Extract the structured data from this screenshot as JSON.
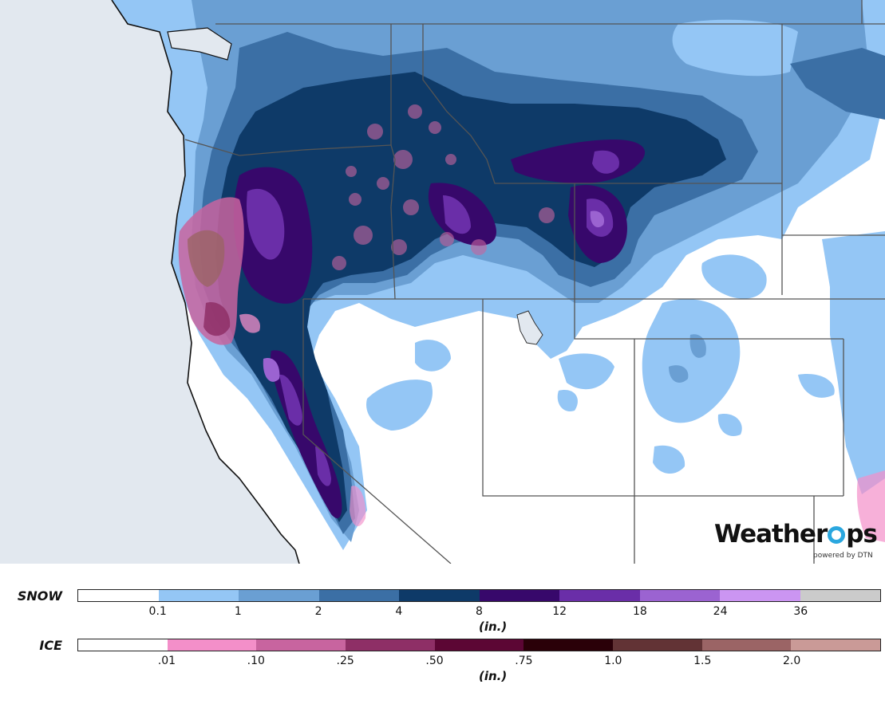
{
  "logo": {
    "brand_prefix": "Weather",
    "brand_suffix": "ps",
    "powered_by": "powered by DTN"
  },
  "colors": {
    "ocean": "#e2e8ef",
    "land": "#ffffff",
    "border": "#555555",
    "coast": "#111111"
  },
  "legend": {
    "snow": {
      "label": "SNOW",
      "unit": "(in.)",
      "colors": [
        "#ffffff",
        "#94c6f5",
        "#6a9fd3",
        "#3b6fa5",
        "#0e3a68",
        "#37086b",
        "#6a2ea8",
        "#9b63d1",
        "#cb95f2",
        "#cbcbcb"
      ],
      "ticks": [
        "0.1",
        "1",
        "2",
        "4",
        "8",
        "12",
        "18",
        "24",
        "36"
      ]
    },
    "ice": {
      "label": "ICE",
      "unit": "(in.)",
      "colors": [
        "#ffffff",
        "#f38fc9",
        "#c8649f",
        "#8e2f66",
        "#5c0634",
        "#2a0008",
        "#623335",
        "#9b6465",
        "#ca9a97"
      ],
      "ticks": [
        ".01",
        ".10",
        ".25",
        ".50",
        ".75",
        "1.0",
        "1.5",
        "2.0"
      ]
    }
  }
}
